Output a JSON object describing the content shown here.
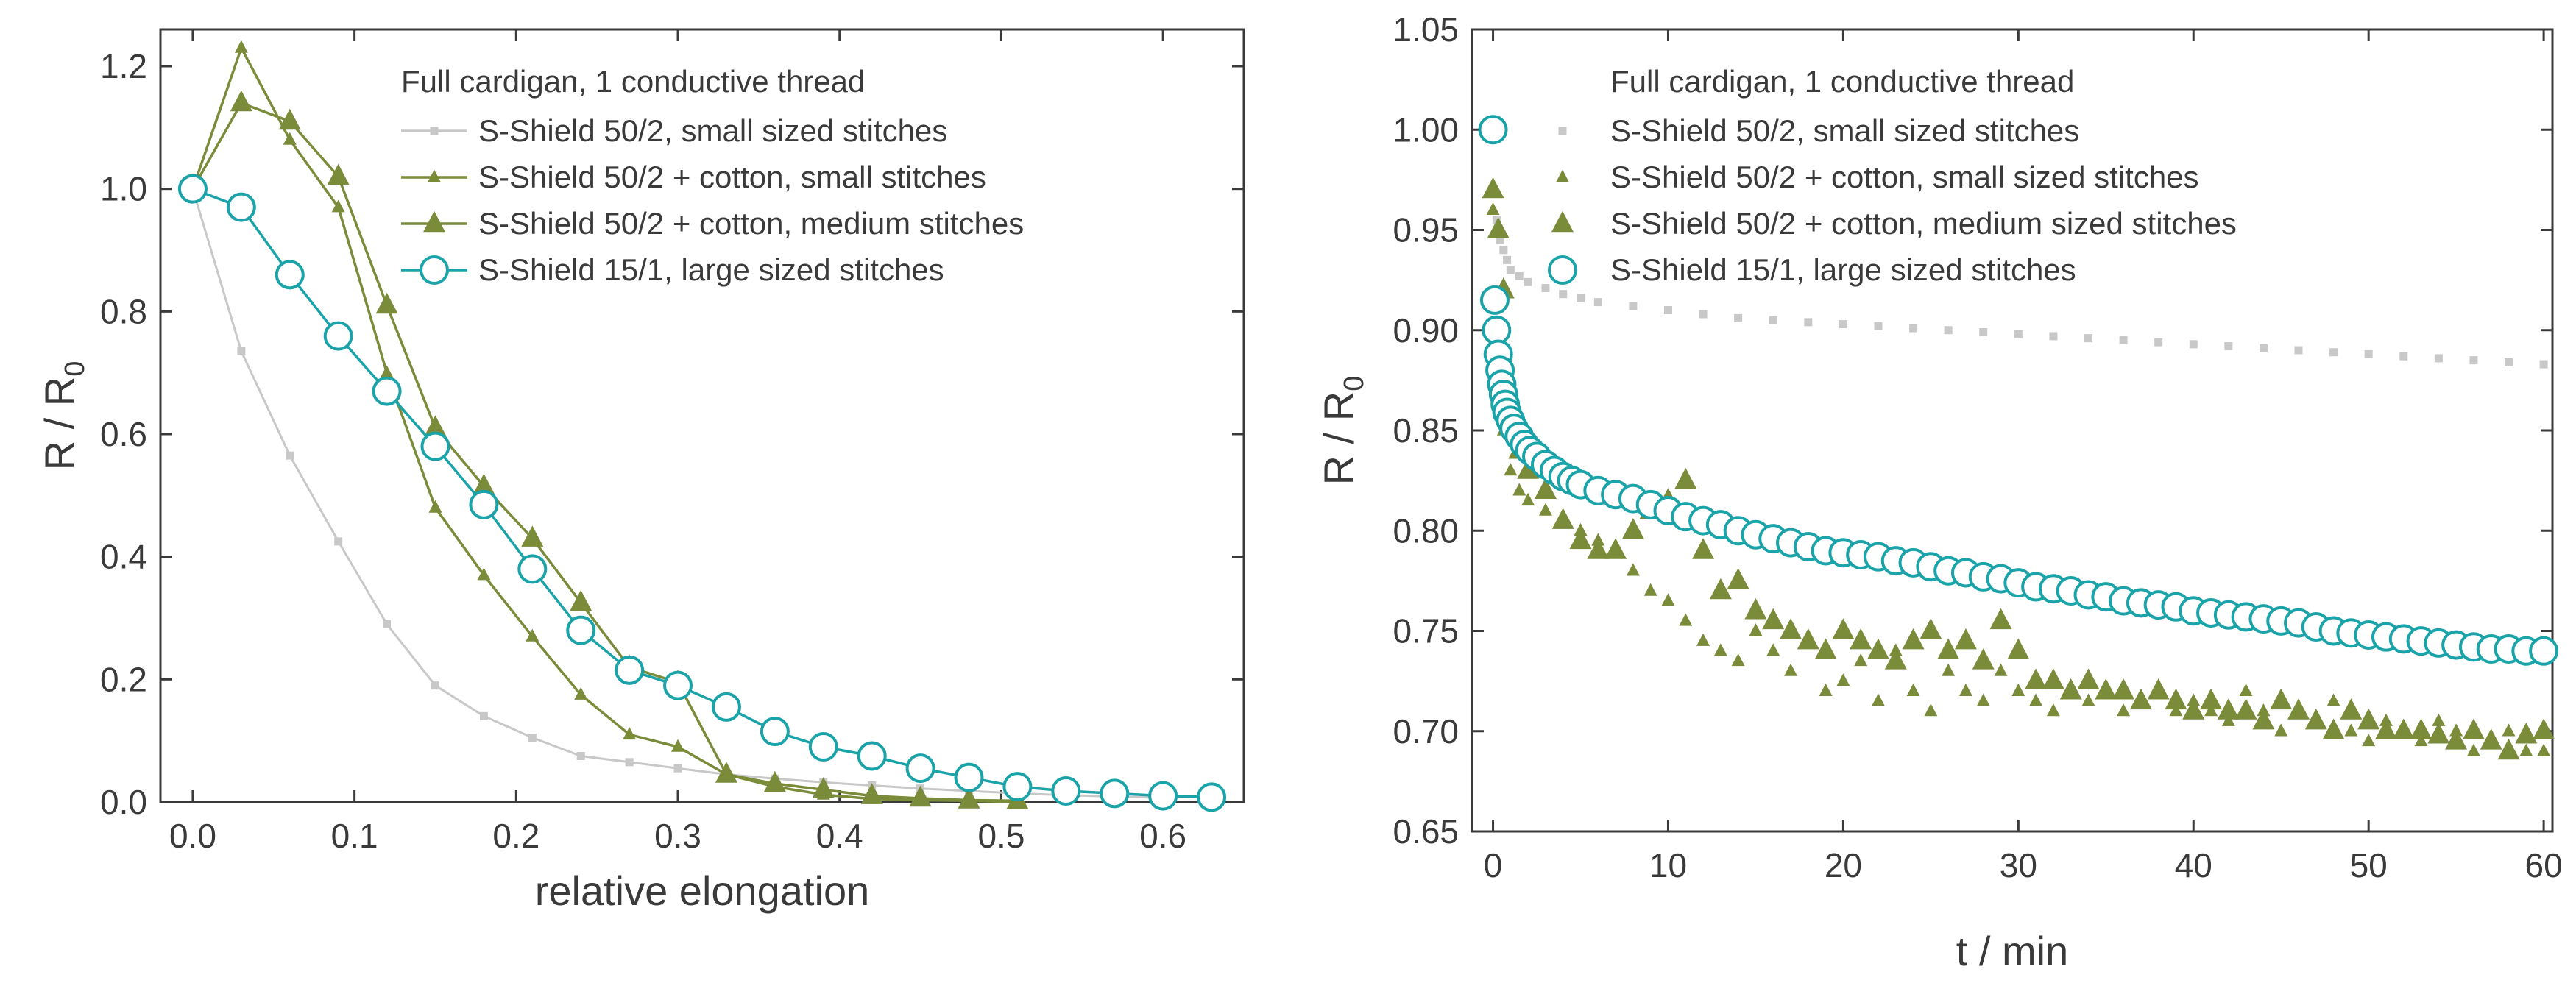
{
  "chart_data": [
    {
      "type": "line",
      "title": "",
      "legend_title": "Full cardigan, 1 conductive thread",
      "legend_position": "top-right",
      "xlabel": "relative elongation",
      "ylabel": {
        "main": "R / R",
        "sub": "0"
      },
      "xlim": [
        -0.02,
        0.65
      ],
      "ylim": [
        0.0,
        1.26
      ],
      "xticks": [
        0.0,
        0.1,
        0.2,
        0.3,
        0.4,
        0.5,
        0.6
      ],
      "yticks": [
        0.0,
        0.2,
        0.4,
        0.6,
        0.8,
        1.0,
        1.2
      ],
      "xtick_labels": [
        "0.0",
        "0.1",
        "0.2",
        "0.3",
        "0.4",
        "0.5",
        "0.6"
      ],
      "ytick_labels": [
        "0.0",
        "0.2",
        "0.4",
        "0.6",
        "0.8",
        "1.0",
        "1.2"
      ],
      "series": [
        {
          "name": "S-Shield 50/2, small sized stitches",
          "color": "#c8c8c8",
          "marker": "square",
          "marker_size": "small",
          "line": true,
          "x": [
            0.0,
            0.03,
            0.06,
            0.09,
            0.12,
            0.15,
            0.18,
            0.21,
            0.24,
            0.27,
            0.3,
            0.33,
            0.36,
            0.39,
            0.42,
            0.45,
            0.48,
            0.51,
            0.54,
            0.57,
            0.6
          ],
          "y": [
            1.0,
            0.735,
            0.565,
            0.425,
            0.29,
            0.19,
            0.14,
            0.105,
            0.075,
            0.065,
            0.055,
            0.045,
            0.038,
            0.032,
            0.027,
            0.022,
            0.018,
            0.014,
            0.011,
            0.009,
            0.007
          ]
        },
        {
          "name": "S-Shield 50/2 + cotton, small stitches",
          "color": "#7a8b3a",
          "marker": "triangle",
          "marker_size": "small",
          "line": true,
          "x": [
            0.0,
            0.03,
            0.06,
            0.09,
            0.12,
            0.15,
            0.18,
            0.21,
            0.24,
            0.27,
            0.3,
            0.33,
            0.36,
            0.39,
            0.42,
            0.45,
            0.48,
            0.51
          ],
          "y": [
            1.0,
            1.23,
            1.08,
            0.97,
            0.7,
            0.48,
            0.37,
            0.27,
            0.175,
            0.11,
            0.09,
            0.045,
            0.025,
            0.012,
            0.005,
            0.003,
            0.002,
            0.0
          ]
        },
        {
          "name": "S-Shield 50/2 + cotton, medium stitches",
          "color": "#7a8b3a",
          "marker": "triangle",
          "marker_size": "large",
          "line": true,
          "x": [
            0.0,
            0.03,
            0.06,
            0.09,
            0.12,
            0.15,
            0.18,
            0.21,
            0.24,
            0.27,
            0.3,
            0.33,
            0.36,
            0.39,
            0.42,
            0.45,
            0.48,
            0.51
          ],
          "y": [
            1.0,
            1.14,
            1.11,
            1.02,
            0.81,
            0.61,
            0.515,
            0.43,
            0.325,
            0.22,
            0.195,
            0.045,
            0.03,
            0.02,
            0.01,
            0.006,
            0.003,
            0.002
          ]
        },
        {
          "name": "S-Shield 15/1, large sized stitches",
          "color": "#1aa3a8",
          "marker": "circle",
          "marker_size": "large",
          "line": true,
          "x": [
            0.0,
            0.03,
            0.06,
            0.09,
            0.12,
            0.15,
            0.18,
            0.21,
            0.24,
            0.27,
            0.3,
            0.33,
            0.36,
            0.39,
            0.42,
            0.45,
            0.48,
            0.51,
            0.54,
            0.57,
            0.6,
            0.63
          ],
          "y": [
            1.0,
            0.97,
            0.86,
            0.76,
            0.67,
            0.58,
            0.485,
            0.38,
            0.28,
            0.215,
            0.19,
            0.155,
            0.115,
            0.09,
            0.075,
            0.055,
            0.04,
            0.025,
            0.018,
            0.014,
            0.01,
            0.008
          ]
        }
      ]
    },
    {
      "type": "scatter",
      "title": "",
      "legend_title": "Full cardigan, 1 conductive thread",
      "legend_position": "top-right",
      "xlabel": "t / min",
      "ylabel": {
        "main": "R / R",
        "sub": "0"
      },
      "xlim": [
        -1.2,
        60.5
      ],
      "ylim": [
        0.65,
        1.05
      ],
      "xticks": [
        0,
        10,
        20,
        30,
        40,
        50,
        60
      ],
      "yticks": [
        0.65,
        0.7,
        0.75,
        0.8,
        0.85,
        0.9,
        0.95,
        1.0,
        1.05
      ],
      "xtick_labels": [
        "0",
        "10",
        "20",
        "30",
        "40",
        "50",
        "60"
      ],
      "ytick_labels": [
        "0.65",
        "0.70",
        "0.75",
        "0.80",
        "0.85",
        "0.90",
        "0.95",
        "1.00",
        "1.05"
      ],
      "series": [
        {
          "name": "S-Shield 50/2, small sized stitches",
          "color": "#c8c8c8",
          "marker": "square",
          "marker_size": "small",
          "line": false,
          "x": [
            0,
            0.2,
            0.4,
            0.6,
            0.8,
            1,
            1.5,
            2,
            3,
            4,
            5,
            6,
            8,
            10,
            12,
            14,
            16,
            18,
            20,
            22,
            24,
            26,
            28,
            30,
            32,
            34,
            36,
            38,
            40,
            42,
            44,
            46,
            48,
            50,
            52,
            54,
            56,
            58,
            60
          ],
          "y": [
            1.0,
            0.955,
            0.945,
            0.94,
            0.935,
            0.93,
            0.927,
            0.924,
            0.921,
            0.918,
            0.916,
            0.914,
            0.912,
            0.91,
            0.908,
            0.906,
            0.905,
            0.904,
            0.903,
            0.902,
            0.901,
            0.9,
            0.899,
            0.898,
            0.897,
            0.896,
            0.895,
            0.894,
            0.893,
            0.892,
            0.891,
            0.89,
            0.889,
            0.888,
            0.887,
            0.886,
            0.885,
            0.884,
            0.883
          ]
        },
        {
          "name": "S-Shield 50/2 + cotton, small sized stitches",
          "color": "#7a8b3a",
          "marker": "triangle",
          "marker_size": "small",
          "line": false,
          "x": [
            0,
            0.3,
            0.6,
            1,
            1.5,
            2,
            3,
            4,
            5,
            6,
            7,
            8,
            9,
            10,
            11,
            12,
            13,
            14,
            15,
            16,
            17,
            18,
            19,
            20,
            21,
            22,
            23,
            24,
            25,
            26,
            27,
            28,
            29,
            30,
            31,
            32,
            33,
            34,
            35,
            36,
            37,
            38,
            39,
            40,
            41,
            42,
            43,
            44,
            45,
            46,
            47,
            48,
            49,
            50,
            51,
            52,
            53,
            54,
            55,
            56,
            57,
            58,
            59,
            60
          ],
          "y": [
            0.96,
            0.9,
            0.85,
            0.83,
            0.82,
            0.815,
            0.81,
            0.805,
            0.8,
            0.795,
            0.79,
            0.78,
            0.77,
            0.765,
            0.755,
            0.745,
            0.74,
            0.735,
            0.75,
            0.74,
            0.73,
            0.745,
            0.72,
            0.725,
            0.735,
            0.715,
            0.74,
            0.72,
            0.71,
            0.73,
            0.72,
            0.715,
            0.73,
            0.72,
            0.715,
            0.71,
            0.72,
            0.715,
            0.72,
            0.71,
            0.715,
            0.72,
            0.71,
            0.715,
            0.71,
            0.705,
            0.72,
            0.71,
            0.7,
            0.71,
            0.705,
            0.715,
            0.7,
            0.695,
            0.705,
            0.7,
            0.695,
            0.705,
            0.7,
            0.69,
            0.695,
            0.7,
            0.69,
            0.69
          ]
        },
        {
          "name": "S-Shield 50/2 + cotton, medium sized stitches",
          "color": "#7a8b3a",
          "marker": "triangle",
          "marker_size": "large",
          "line": false,
          "x": [
            0,
            0.3,
            0.6,
            1,
            1.5,
            2,
            3,
            4,
            5,
            6,
            7,
            8,
            9,
            10,
            11,
            12,
            13,
            14,
            15,
            16,
            17,
            18,
            19,
            20,
            21,
            22,
            23,
            24,
            25,
            26,
            27,
            28,
            29,
            30,
            31,
            32,
            33,
            34,
            35,
            36,
            37,
            38,
            39,
            40,
            41,
            42,
            43,
            44,
            45,
            46,
            47,
            48,
            49,
            50,
            51,
            52,
            53,
            54,
            55,
            56,
            57,
            58,
            59,
            60
          ],
          "y": [
            0.97,
            0.95,
            0.92,
            0.86,
            0.84,
            0.83,
            0.82,
            0.805,
            0.795,
            0.79,
            0.79,
            0.8,
            0.81,
            0.815,
            0.825,
            0.79,
            0.77,
            0.775,
            0.76,
            0.755,
            0.75,
            0.745,
            0.74,
            0.75,
            0.745,
            0.74,
            0.735,
            0.745,
            0.75,
            0.74,
            0.745,
            0.735,
            0.755,
            0.74,
            0.725,
            0.725,
            0.72,
            0.725,
            0.72,
            0.72,
            0.715,
            0.72,
            0.715,
            0.71,
            0.715,
            0.71,
            0.71,
            0.705,
            0.715,
            0.71,
            0.705,
            0.7,
            0.71,
            0.705,
            0.7,
            0.7,
            0.7,
            0.698,
            0.695,
            0.7,
            0.695,
            0.69,
            0.698,
            0.7
          ]
        },
        {
          "name": "S-Shield 15/1, large sized stitches",
          "color": "#1aa3a8",
          "marker": "circle",
          "marker_size": "large",
          "line": false,
          "x": [
            0,
            0.1,
            0.2,
            0.3,
            0.4,
            0.5,
            0.6,
            0.7,
            0.8,
            1,
            1.2,
            1.5,
            1.8,
            2.1,
            2.5,
            3,
            3.5,
            4,
            4.5,
            5,
            6,
            7,
            8,
            9,
            10,
            11,
            12,
            13,
            14,
            15,
            16,
            17,
            18,
            19,
            20,
            21,
            22,
            23,
            24,
            25,
            26,
            27,
            28,
            29,
            30,
            31,
            32,
            33,
            34,
            35,
            36,
            37,
            38,
            39,
            40,
            41,
            42,
            43,
            44,
            45,
            46,
            47,
            48,
            49,
            50,
            51,
            52,
            53,
            54,
            55,
            56,
            57,
            58,
            59,
            60
          ],
          "y": [
            1.0,
            0.915,
            0.9,
            0.888,
            0.88,
            0.873,
            0.868,
            0.863,
            0.859,
            0.855,
            0.851,
            0.847,
            0.843,
            0.84,
            0.837,
            0.833,
            0.83,
            0.827,
            0.825,
            0.823,
            0.82,
            0.818,
            0.816,
            0.813,
            0.81,
            0.807,
            0.805,
            0.803,
            0.8,
            0.798,
            0.796,
            0.794,
            0.792,
            0.79,
            0.789,
            0.788,
            0.787,
            0.785,
            0.784,
            0.782,
            0.78,
            0.779,
            0.777,
            0.776,
            0.774,
            0.772,
            0.771,
            0.77,
            0.768,
            0.767,
            0.765,
            0.764,
            0.763,
            0.762,
            0.76,
            0.759,
            0.758,
            0.757,
            0.756,
            0.755,
            0.754,
            0.752,
            0.75,
            0.749,
            0.748,
            0.747,
            0.746,
            0.745,
            0.744,
            0.743,
            0.742,
            0.741,
            0.741,
            0.74,
            0.74
          ]
        }
      ]
    }
  ]
}
